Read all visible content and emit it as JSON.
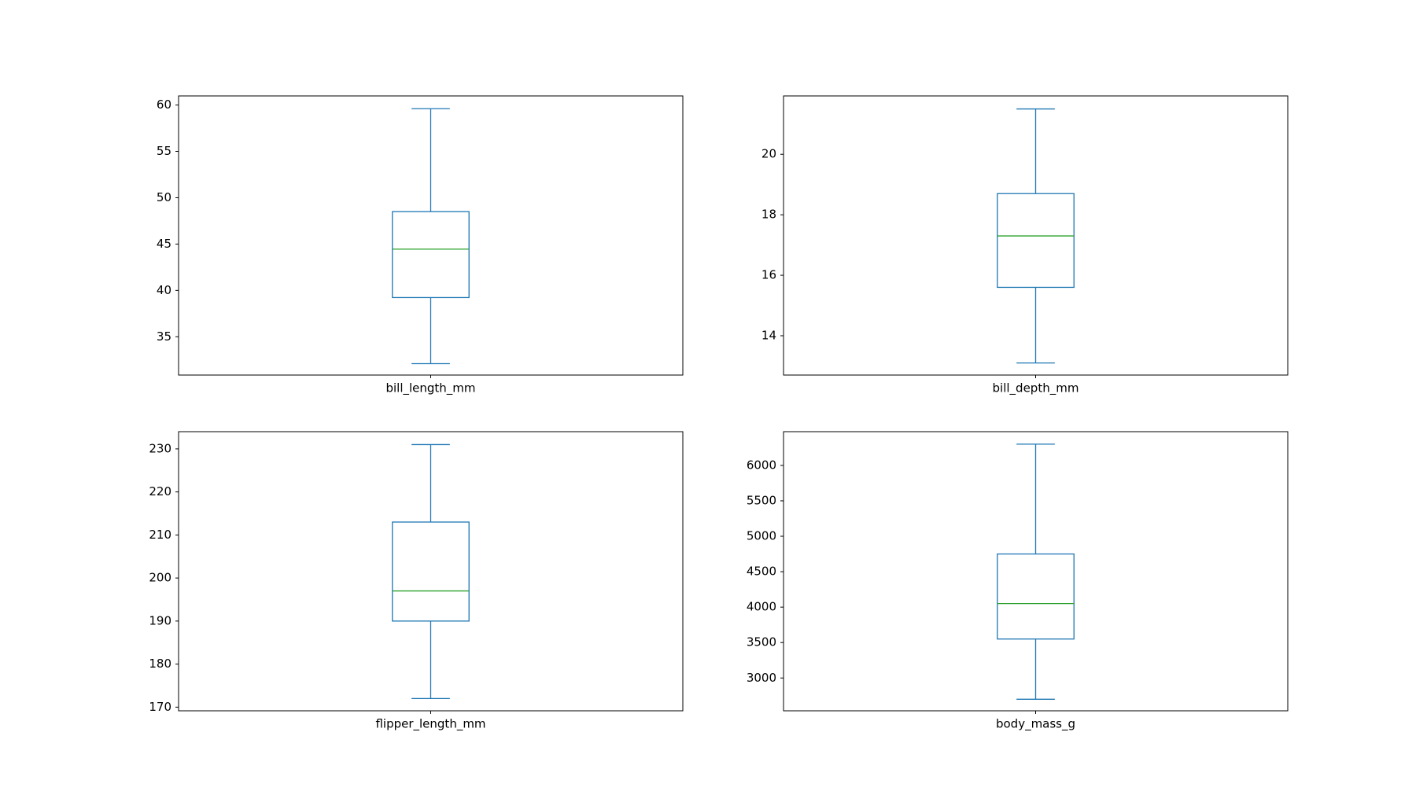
{
  "chart_data": [
    {
      "type": "box",
      "categories": [
        "bill_length_mm"
      ],
      "boxes": [
        {
          "whislo": 32.1,
          "q1": 39.23,
          "med": 44.45,
          "q3": 48.5,
          "whishi": 59.6
        }
      ],
      "color": "#1f77b4",
      "median_color": "#2ca02c",
      "ylim": [
        30.87,
        60.98
      ],
      "yticks": [
        35,
        40,
        45,
        50,
        55,
        60
      ]
    },
    {
      "type": "box",
      "categories": [
        "bill_depth_mm"
      ],
      "boxes": [
        {
          "whislo": 13.1,
          "q1": 15.6,
          "med": 17.3,
          "q3": 18.7,
          "whishi": 21.5
        }
      ],
      "color": "#1f77b4",
      "median_color": "#2ca02c",
      "ylim": [
        12.7,
        21.93
      ],
      "yticks": [
        14,
        16,
        18,
        20
      ]
    },
    {
      "type": "box",
      "categories": [
        "flipper_length_mm"
      ],
      "boxes": [
        {
          "whislo": 172,
          "q1": 190,
          "med": 197,
          "q3": 213,
          "whishi": 231
        }
      ],
      "color": "#1f77b4",
      "median_color": "#2ca02c",
      "ylim": [
        169.15,
        234.0
      ],
      "yticks": [
        170,
        180,
        190,
        200,
        210,
        220,
        230
      ]
    },
    {
      "type": "box",
      "categories": [
        "body_mass_g"
      ],
      "boxes": [
        {
          "whislo": 2700,
          "q1": 3550,
          "med": 4050,
          "q3": 4750,
          "whishi": 6300
        }
      ],
      "color": "#1f77b4",
      "median_color": "#2ca02c",
      "ylim": [
        2537,
        6476
      ],
      "yticks": [
        3000,
        3500,
        4000,
        4500,
        5000,
        5500,
        6000
      ]
    }
  ]
}
